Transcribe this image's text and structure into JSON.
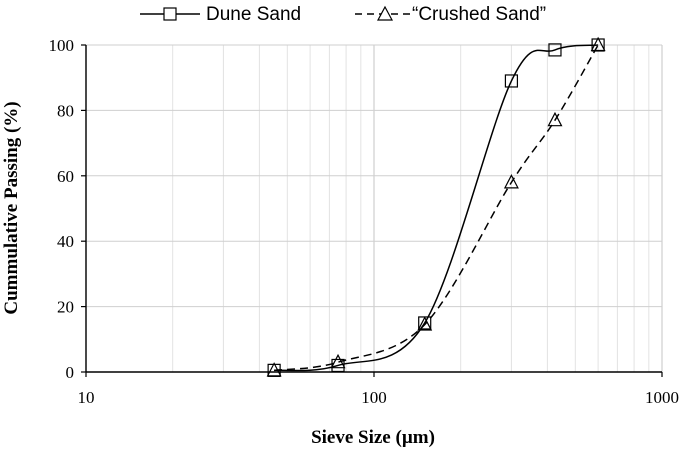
{
  "chart_data": {
    "type": "line",
    "x_scale": "log",
    "xlim": [
      10,
      1000
    ],
    "ylim": [
      0,
      100
    ],
    "xlabel": "Sieve Size (µm)",
    "ylabel": "Cummulative Passing (%)",
    "x_ticks": [
      "10",
      "100",
      "1000"
    ],
    "y_ticks": [
      "0",
      "20",
      "40",
      "60",
      "80",
      "100"
    ],
    "grid": true,
    "legend_position": "top",
    "series": [
      {
        "name": "Dune Sand",
        "marker": "square",
        "line_style": "solid",
        "color": "#000000",
        "x": [
          45,
          75,
          150,
          300,
          425,
          600
        ],
        "y": [
          0.5,
          2,
          15,
          89,
          98.5,
          100
        ]
      },
      {
        "name": "“Crushed Sand”",
        "marker": "triangle",
        "line_style": "dashed",
        "color": "#000000",
        "x": [
          45,
          75,
          150,
          300,
          425,
          600
        ],
        "y": [
          0.5,
          3,
          14.5,
          58,
          77,
          100
        ]
      }
    ]
  }
}
